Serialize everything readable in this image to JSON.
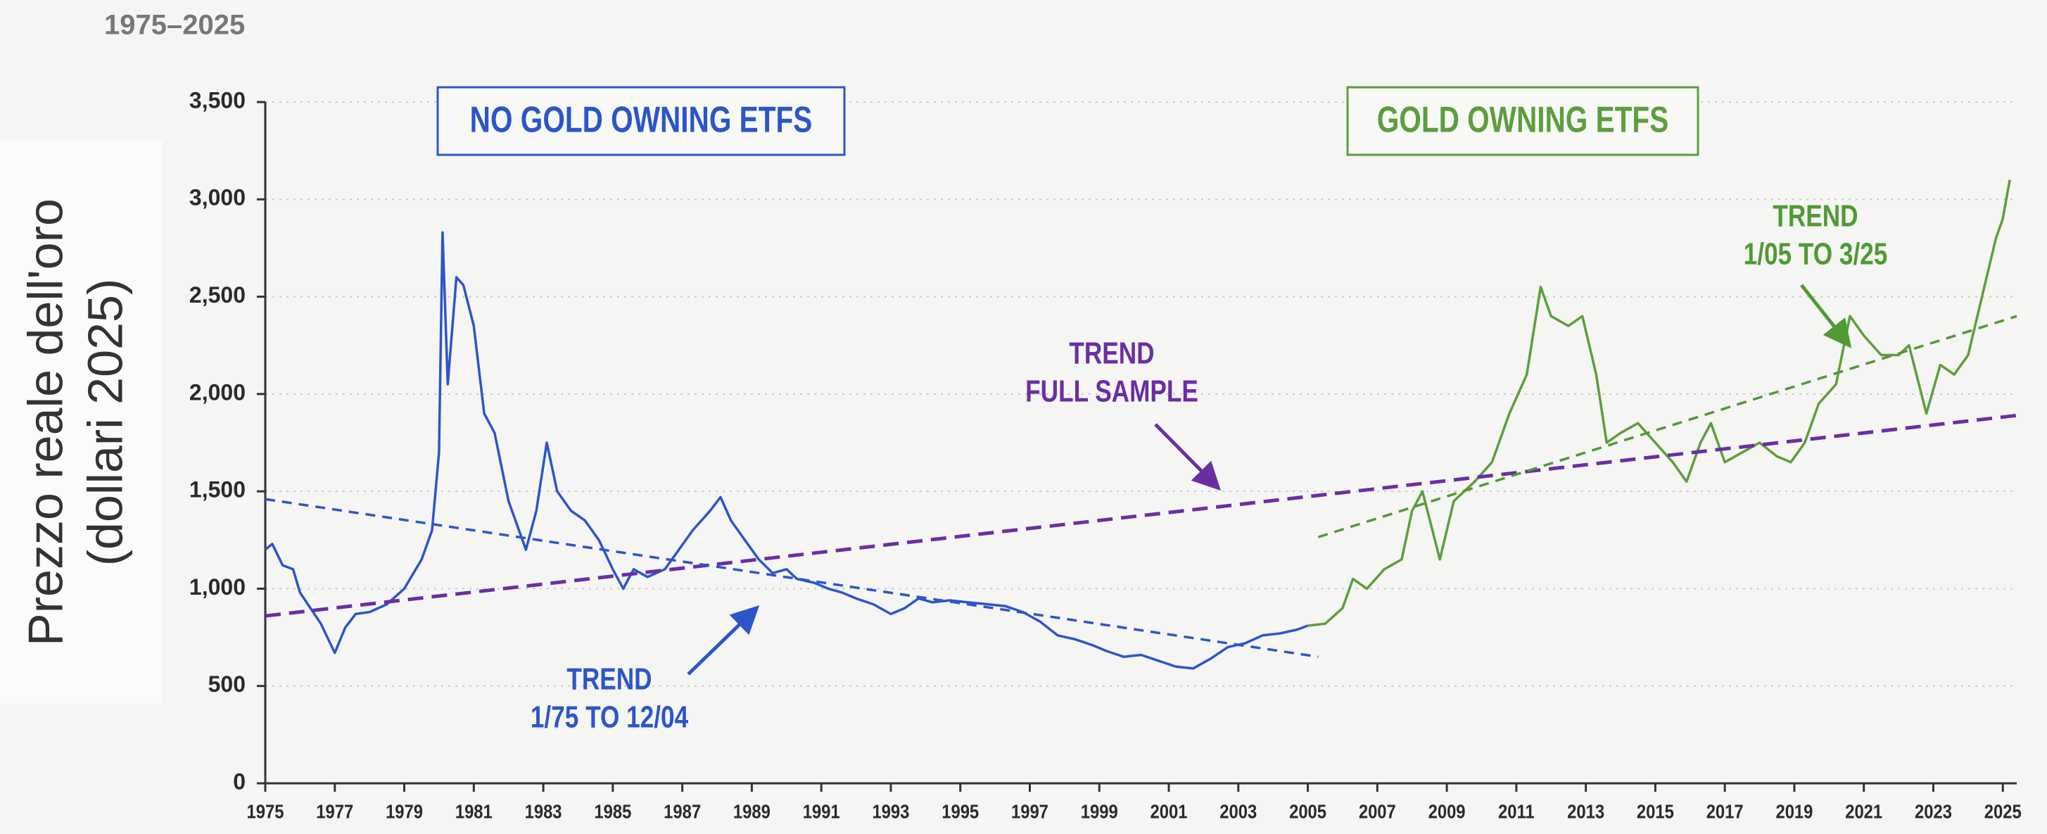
{
  "chart_data": {
    "type": "line",
    "subtitle": "1975–2025",
    "y_label_lines": [
      "Prezzo reale dell'oro",
      "(dollari 2025)"
    ],
    "xlim": [
      1975,
      2025.4
    ],
    "xticks": [
      1975,
      1977,
      1979,
      1981,
      1983,
      1985,
      1987,
      1989,
      1991,
      1993,
      1995,
      1997,
      1999,
      2001,
      2003,
      2005,
      2007,
      2009,
      2011,
      2013,
      2015,
      2017,
      2019,
      2021,
      2023,
      2025
    ],
    "ylim": [
      0,
      3500
    ],
    "yticks": [
      0,
      500,
      {
        "value": 1000,
        "label": "1,000"
      },
      {
        "value": 1500,
        "label": "1,500"
      },
      {
        "value": 2000,
        "label": "2,000"
      },
      {
        "value": 2500,
        "label": "2,500"
      },
      {
        "value": 3000,
        "label": "3,000"
      },
      {
        "value": 3500,
        "label": "3,500"
      }
    ],
    "grid": true,
    "series": [
      {
        "name": "NO GOLD OWNING ETFS",
        "color": "#2b56c9",
        "x": [
          1975.0,
          1975.2,
          1975.5,
          1975.8,
          1976.0,
          1976.3,
          1976.6,
          1977.0,
          1977.3,
          1977.6,
          1978.0,
          1978.5,
          1979.0,
          1979.5,
          1979.8,
          1980.0,
          1980.1,
          1980.25,
          1980.5,
          1980.7,
          1981.0,
          1981.3,
          1981.6,
          1982.0,
          1982.5,
          1982.8,
          1983.1,
          1983.4,
          1983.8,
          1984.2,
          1984.6,
          1985.0,
          1985.3,
          1985.6,
          1986.0,
          1986.5,
          1986.9,
          1987.3,
          1987.8,
          1988.1,
          1988.4,
          1988.8,
          1989.2,
          1989.6,
          1990.0,
          1990.3,
          1990.8,
          1991.2,
          1991.6,
          1992.0,
          1992.5,
          1993.0,
          1993.4,
          1993.8,
          1994.2,
          1994.7,
          1995.2,
          1995.8,
          1996.3,
          1996.8,
          1997.3,
          1997.8,
          1998.3,
          1998.8,
          1999.2,
          1999.7,
          2000.2,
          2000.7,
          2001.2,
          2001.7,
          2002.2,
          2002.7,
          2003.2,
          2003.7,
          2004.2,
          2004.7,
          2005.0
        ],
        "values": [
          1200,
          1230,
          1120,
          1100,
          980,
          900,
          820,
          670,
          800,
          870,
          880,
          920,
          1000,
          1150,
          1300,
          1700,
          2830,
          2050,
          2600,
          2560,
          2350,
          1900,
          1800,
          1450,
          1200,
          1400,
          1750,
          1500,
          1400,
          1350,
          1250,
          1100,
          1000,
          1100,
          1060,
          1100,
          1200,
          1300,
          1400,
          1470,
          1350,
          1250,
          1150,
          1080,
          1100,
          1050,
          1030,
          1000,
          980,
          950,
          920,
          870,
          900,
          950,
          930,
          940,
          930,
          920,
          910,
          880,
          830,
          760,
          740,
          710,
          680,
          650,
          660,
          630,
          600,
          590,
          640,
          700,
          720,
          760,
          770,
          790,
          810
        ]
      },
      {
        "name": "GOLD OWNING ETFS",
        "color": "#5c9e3c",
        "x": [
          2005.0,
          2005.5,
          2006.0,
          2006.3,
          2006.7,
          2007.2,
          2007.7,
          2008.0,
          2008.3,
          2008.8,
          2009.2,
          2009.8,
          2010.3,
          2010.8,
          2011.3,
          2011.7,
          2012.0,
          2012.5,
          2012.9,
          2013.3,
          2013.6,
          2014.0,
          2014.5,
          2015.0,
          2015.5,
          2015.9,
          2016.3,
          2016.6,
          2017.0,
          2017.5,
          2018.0,
          2018.5,
          2018.9,
          2019.3,
          2019.7,
          2020.2,
          2020.6,
          2021.0,
          2021.5,
          2022.0,
          2022.3,
          2022.8,
          2023.2,
          2023.6,
          2024.0,
          2024.4,
          2024.8,
          2025.0,
          2025.2
        ],
        "values": [
          810,
          820,
          900,
          1050,
          1000,
          1100,
          1150,
          1400,
          1500,
          1150,
          1450,
          1550,
          1650,
          1900,
          2100,
          2550,
          2400,
          2350,
          2400,
          2100,
          1750,
          1800,
          1850,
          1750,
          1650,
          1550,
          1750,
          1850,
          1650,
          1700,
          1750,
          1680,
          1650,
          1750,
          1950,
          2050,
          2400,
          2300,
          2200,
          2200,
          2250,
          1900,
          2150,
          2100,
          2200,
          2500,
          2800,
          2900,
          3100
        ]
      }
    ],
    "trend_lines": [
      {
        "lines": [
          "TREND",
          "FULL SAMPLE"
        ],
        "color": "#6a2ea3",
        "x": [
          1975,
          2025.4
        ],
        "values": [
          860,
          1890
        ]
      },
      {
        "lines": [
          "TREND",
          "1/75 TO 12/04"
        ],
        "color": "#2b56c9",
        "x": [
          1975,
          2005.3
        ],
        "values": [
          1460,
          650
        ]
      },
      {
        "lines": [
          "TREND",
          "1/05 TO 3/25"
        ],
        "color": "#4f9a33",
        "x": [
          2005.3,
          2025.4
        ],
        "values": [
          1265,
          2400
        ]
      }
    ]
  }
}
